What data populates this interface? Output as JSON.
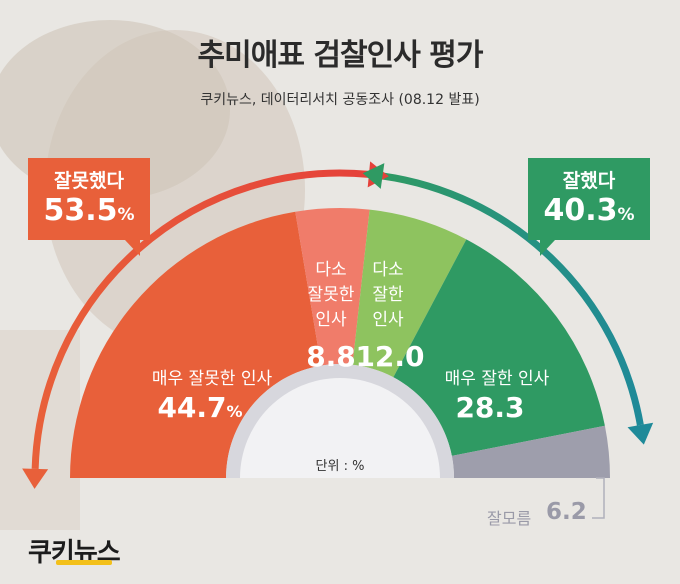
{
  "title": "추미애표 검찰인사 평가",
  "subtitle": "쿠키뉴스, 데이터리서치 공동조사 (08.12 발표)",
  "callouts": {
    "negative": {
      "label": "잘못했다",
      "value": "53.5",
      "unit": "%"
    },
    "positive": {
      "label": "잘했다",
      "value": "40.3",
      "unit": "%"
    }
  },
  "unit_label": "단위 : %",
  "dont_know": {
    "label": "잘모름",
    "value": "6.2"
  },
  "logo": "쿠키뉴스",
  "colors": {
    "very_negative": "#e8603a",
    "somewhat_negative": "#f07c6a",
    "somewhat_positive": "#8ec35f",
    "very_positive": "#2f9a63",
    "dont_know": "#9e9eac"
  },
  "chart_data": {
    "type": "pie",
    "shape": "half-donut",
    "categories": [
      "매우 잘못한 인사",
      "다소 잘못한 인사",
      "다소 잘한 인사",
      "매우 잘한 인사",
      "잘모름"
    ],
    "values": [
      44.7,
      8.8,
      12.0,
      28.3,
      6.2
    ],
    "value_labels": [
      "44.7",
      "8.8",
      "12.0",
      "28.3",
      "6.2"
    ],
    "unit_suffix": [
      "%",
      "",
      "",
      "",
      ""
    ]
  }
}
